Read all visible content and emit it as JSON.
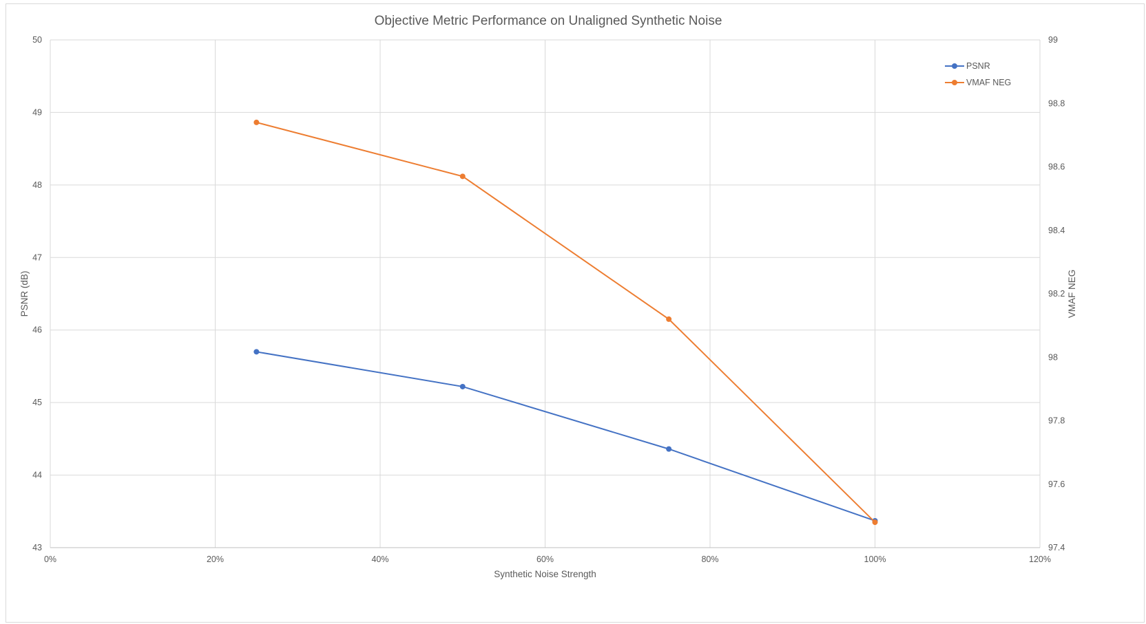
{
  "chart_data": {
    "type": "line",
    "title": "Objective Metric Performance  on Unaligned Synthetic Noise",
    "xlabel": "Synthetic Noise Strength",
    "ylabel": "PSNR (dB)",
    "y2label": "VMAF NEG",
    "x": [
      0.25,
      0.5,
      0.75,
      1.0
    ],
    "xlim": [
      0,
      1.2
    ],
    "xticks": [
      0,
      0.2,
      0.4,
      0.6,
      0.8,
      1.0,
      1.2
    ],
    "xtick_labels": [
      "0%",
      "20%",
      "40%",
      "60%",
      "80%",
      "100%",
      "120%"
    ],
    "ylim": [
      43,
      50
    ],
    "yticks": [
      43,
      44,
      45,
      46,
      47,
      48,
      49,
      50
    ],
    "ytick_labels": [
      "43",
      "44",
      "45",
      "46",
      "47",
      "48",
      "49",
      "50"
    ],
    "y2lim": [
      97.4,
      99
    ],
    "y2ticks": [
      97.4,
      97.6,
      97.8,
      98,
      98.2,
      98.4,
      98.6,
      98.8,
      99
    ],
    "y2tick_labels": [
      "97.4",
      "97.6",
      "97.8",
      "98",
      "98.2",
      "98.4",
      "98.6",
      "98.8",
      "99"
    ],
    "grid": true,
    "legend_position": "top-right",
    "series": [
      {
        "name": "PSNR",
        "axis": "left",
        "color": "#4472c4",
        "values": [
          45.7,
          45.22,
          44.36,
          43.37
        ]
      },
      {
        "name": "VMAF NEG",
        "axis": "right",
        "color": "#ed7d31",
        "values": [
          98.74,
          98.57,
          98.12,
          97.48
        ]
      }
    ]
  }
}
